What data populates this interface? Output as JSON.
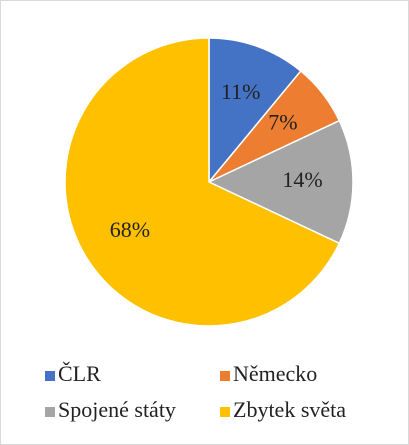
{
  "chart_data": {
    "type": "pie",
    "categories": [
      "ČLR",
      "Německo",
      "Spojené státy",
      "Zbytek světa"
    ],
    "values": [
      11,
      7,
      14,
      68
    ],
    "value_labels": [
      "11%",
      "7%",
      "14%",
      "68%"
    ],
    "colors": [
      "#4472c4",
      "#ed7d31",
      "#a5a5a5",
      "#ffc000"
    ],
    "legend": "bottom"
  }
}
